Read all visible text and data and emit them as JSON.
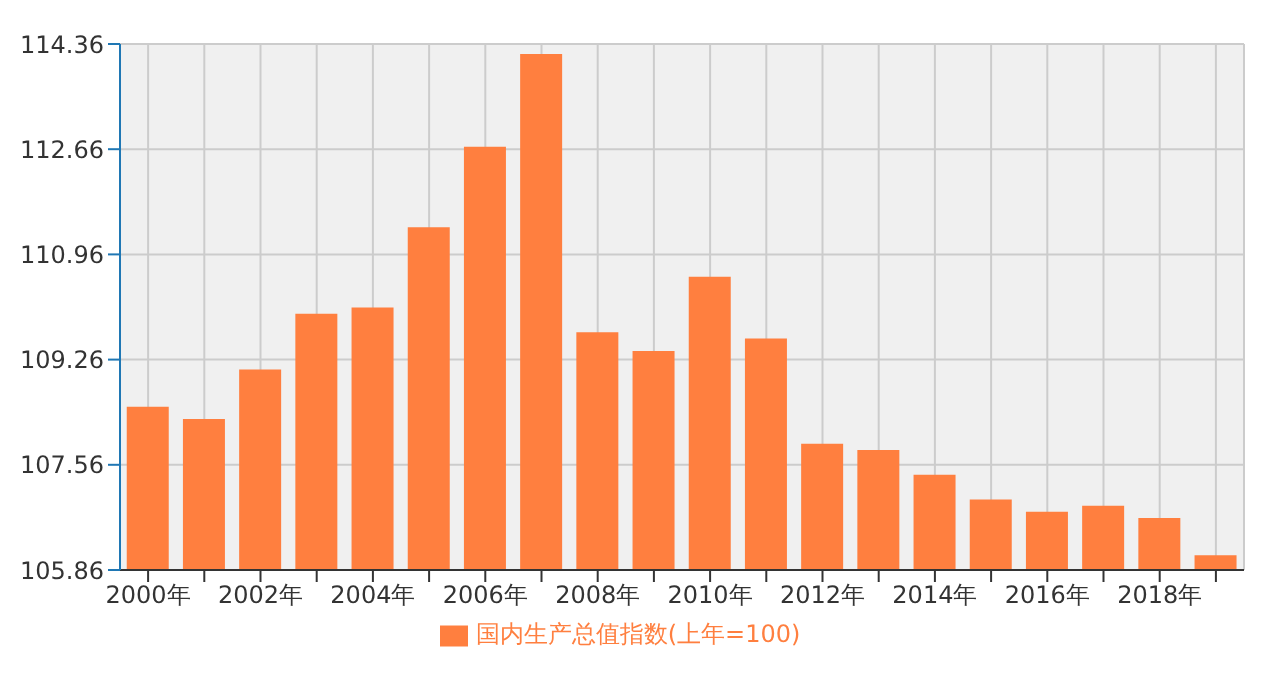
{
  "chart_data": {
    "type": "bar",
    "categories": [
      "2000年",
      null,
      "2002年",
      null,
      "2004年",
      null,
      "2006年",
      null,
      "2008年",
      null,
      "2010年",
      null,
      "2012年",
      null,
      "2014年",
      null,
      "2016年",
      null,
      "2018年",
      null
    ],
    "series": [
      {
        "name": "国内生产总值指数(上年=100)",
        "color": "#ff7f3f",
        "values": [
          108.5,
          108.3,
          109.1,
          110.0,
          110.1,
          111.4,
          112.7,
          114.2,
          109.7,
          109.4,
          110.6,
          109.6,
          107.9,
          107.8,
          107.4,
          107.0,
          106.8,
          106.9,
          106.7,
          106.1
        ]
      }
    ],
    "ylim": [
      105.86,
      114.36
    ],
    "yticks": [
      105.86,
      107.56,
      109.26,
      110.96,
      112.66,
      114.36
    ],
    "grid": true,
    "legend": "bottom"
  }
}
